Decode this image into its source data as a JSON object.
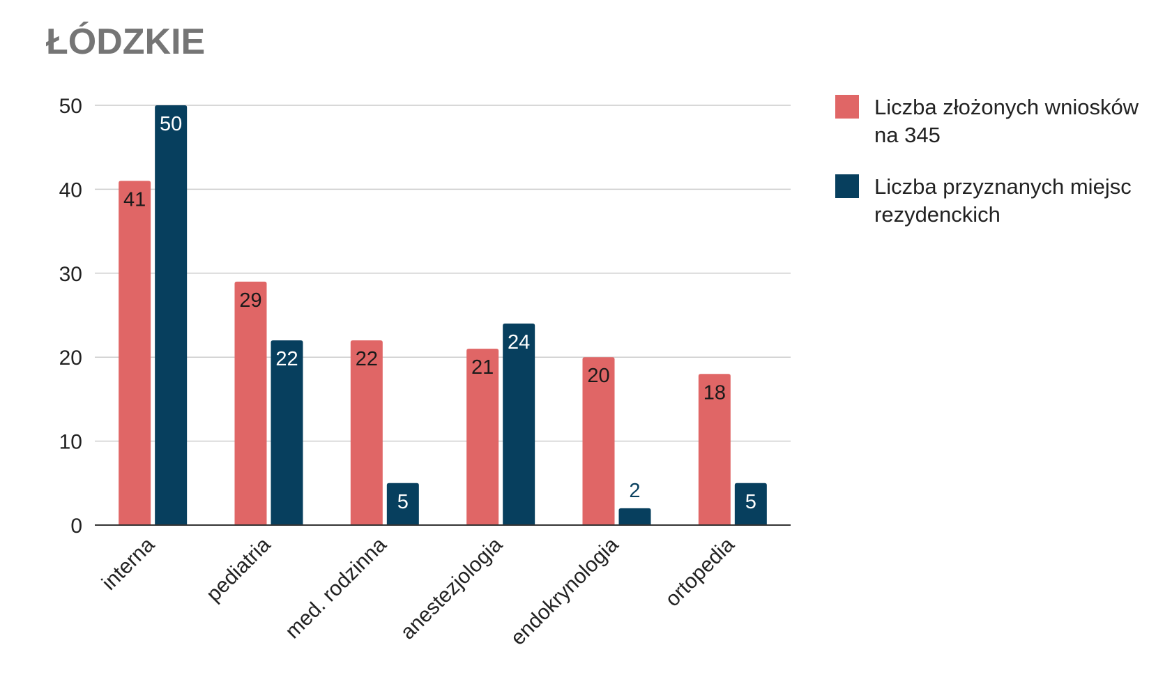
{
  "chart_data": {
    "type": "bar",
    "title": "ŁÓDZKIE",
    "categories": [
      "interna",
      "pediatria",
      "med. rodzinna",
      "anestezjologia",
      "endokrynologia",
      "ortopedia"
    ],
    "series": [
      {
        "name": "Liczba złożonych wniosków na 345",
        "color": "#e06666",
        "values": [
          41,
          29,
          22,
          21,
          20,
          18
        ]
      },
      {
        "name": "Liczba przyznanych miejsc rezydenckich",
        "color": "#073f5e",
        "values": [
          50,
          22,
          5,
          24,
          2,
          5
        ]
      }
    ],
    "ylim": [
      0,
      50
    ],
    "yticks": [
      "0",
      "10",
      "20",
      "30",
      "40",
      "50"
    ],
    "grid": true,
    "legend": "right",
    "xlabel": "",
    "ylabel": ""
  }
}
